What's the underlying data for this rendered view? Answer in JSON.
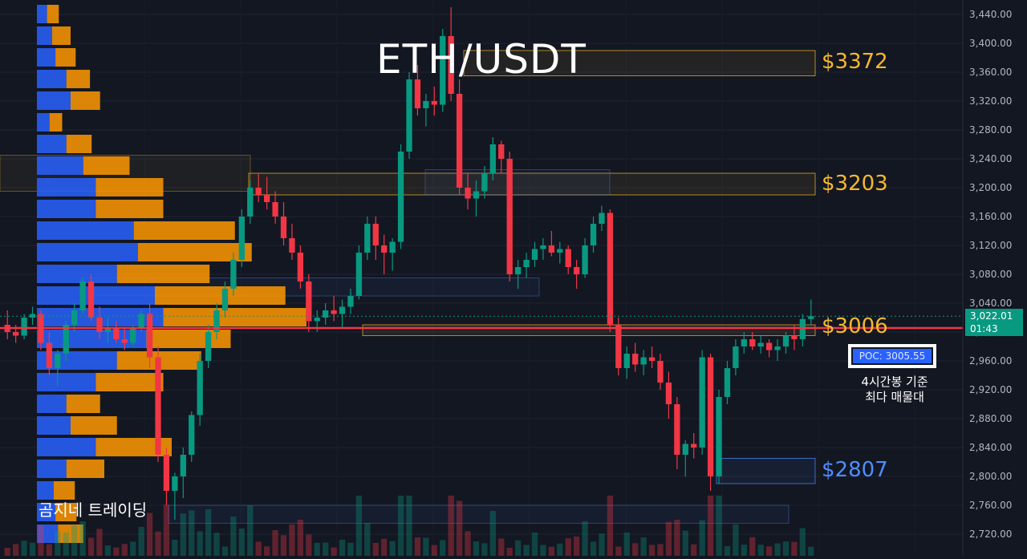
{
  "title": "ETH/USDT",
  "price_axis": {
    "ticks": [
      "2,720.00",
      "2,760.00",
      "2,800.00",
      "2,840.00",
      "2,880.00",
      "2,920.00",
      "2,960.00",
      "3,000.00",
      "3,040.00",
      "3,080.00",
      "3,120.00",
      "3,160.00",
      "3,200.00",
      "3,240.00",
      "3,280.00",
      "3,320.00",
      "3,360.00",
      "3,400.00",
      "3,440.00"
    ]
  },
  "current_price": {
    "value": "3,022.01",
    "countdown": "01:43",
    "color": "#089981"
  },
  "levels": [
    {
      "label": "$3372",
      "price": 3372,
      "color": "#f5b82e",
      "zone": [
        3355,
        3390
      ]
    },
    {
      "label": "$3203",
      "price": 3203,
      "color": "#f5b82e",
      "zone": [
        3190,
        3220
      ]
    },
    {
      "label": "$3006",
      "price": 3006,
      "color": "#f5b82e",
      "zone": [
        2995,
        3010
      ]
    },
    {
      "label": "$2807",
      "price": 2807,
      "color": "#4f8dff",
      "zone": [
        2790,
        2825
      ]
    }
  ],
  "poc": {
    "label": "POC: 3005.55",
    "price": 3005.55,
    "color": "#2962ff",
    "line_color": "#f23645"
  },
  "poc_note": [
    "4시간봉 기준",
    "최다 매물대"
  ],
  "brand": "곰지네 트레이딩",
  "colors": {
    "up": "#089981",
    "down": "#f23645",
    "volume_buy": "#2962ff",
    "volume_sell": "#ff9800",
    "background": "#131722"
  },
  "chart_data": {
    "type": "candlestick",
    "title": "ETH/USDT",
    "ylim": [
      2690,
      3460
    ],
    "grid": true,
    "series": [
      {
        "kind": "candles",
        "ohlc": [
          [
            3010,
            3030,
            2990,
            3000
          ],
          [
            3000,
            3010,
            2985,
            2995
          ],
          [
            2995,
            3025,
            2990,
            3020
          ],
          [
            3020,
            3035,
            3010,
            3025
          ],
          [
            3025,
            3030,
            2975,
            2985
          ],
          [
            2985,
            3000,
            2940,
            2950
          ],
          [
            2950,
            2975,
            2925,
            2970
          ],
          [
            2970,
            3015,
            2960,
            3010
          ],
          [
            3010,
            3040,
            3000,
            3030
          ],
          [
            3030,
            3075,
            3025,
            3070
          ],
          [
            3070,
            3080,
            3015,
            3020
          ],
          [
            3020,
            3035,
            2990,
            3000
          ],
          [
            3000,
            3020,
            2985,
            3005
          ],
          [
            3005,
            3015,
            2985,
            2990
          ],
          [
            2990,
            3005,
            2975,
            2985
          ],
          [
            2985,
            3010,
            2980,
            3005
          ],
          [
            3005,
            3030,
            3000,
            3025
          ],
          [
            3025,
            3040,
            2950,
            2965
          ],
          [
            2965,
            2980,
            2820,
            2830
          ],
          [
            2830,
            2840,
            2760,
            2780
          ],
          [
            2780,
            2805,
            2740,
            2800
          ],
          [
            2800,
            2840,
            2770,
            2830
          ],
          [
            2830,
            2890,
            2820,
            2885
          ],
          [
            2885,
            2970,
            2870,
            2960
          ],
          [
            2960,
            3010,
            2950,
            3000
          ],
          [
            3000,
            3040,
            2990,
            3030
          ],
          [
            3030,
            3070,
            3020,
            3060
          ],
          [
            3060,
            3110,
            3050,
            3100
          ],
          [
            3100,
            3170,
            3090,
            3160
          ],
          [
            3160,
            3210,
            3150,
            3200
          ],
          [
            3200,
            3220,
            3180,
            3190
          ],
          [
            3190,
            3215,
            3170,
            3180
          ],
          [
            3180,
            3195,
            3150,
            3160
          ],
          [
            3160,
            3180,
            3120,
            3130
          ],
          [
            3130,
            3150,
            3100,
            3110
          ],
          [
            3110,
            3120,
            3060,
            3070
          ],
          [
            3070,
            3080,
            3000,
            3015
          ],
          [
            3015,
            3030,
            3000,
            3020
          ],
          [
            3020,
            3040,
            3010,
            3030
          ],
          [
            3030,
            3050,
            3015,
            3025
          ],
          [
            3025,
            3045,
            3005,
            3035
          ],
          [
            3035,
            3060,
            3025,
            3050
          ],
          [
            3050,
            3120,
            3045,
            3110
          ],
          [
            3110,
            3160,
            3100,
            3150
          ],
          [
            3150,
            3160,
            3100,
            3120
          ],
          [
            3120,
            3135,
            3080,
            3110
          ],
          [
            3110,
            3130,
            3085,
            3125
          ],
          [
            3125,
            3260,
            3115,
            3250
          ],
          [
            3250,
            3360,
            3240,
            3350
          ],
          [
            3350,
            3370,
            3300,
            3310
          ],
          [
            3310,
            3330,
            3285,
            3320
          ],
          [
            3320,
            3340,
            3300,
            3315
          ],
          [
            3315,
            3420,
            3305,
            3410
          ],
          [
            3410,
            3450,
            3320,
            3330
          ],
          [
            3330,
            3350,
            3190,
            3200
          ],
          [
            3200,
            3220,
            3170,
            3185
          ],
          [
            3185,
            3210,
            3160,
            3195
          ],
          [
            3195,
            3230,
            3185,
            3220
          ],
          [
            3220,
            3270,
            3210,
            3260
          ],
          [
            3260,
            3265,
            3220,
            3240
          ],
          [
            3240,
            3250,
            3070,
            3080
          ],
          [
            3080,
            3100,
            3060,
            3090
          ],
          [
            3090,
            3110,
            3075,
            3100
          ],
          [
            3100,
            3125,
            3090,
            3115
          ],
          [
            3115,
            3130,
            3100,
            3120
          ],
          [
            3120,
            3140,
            3105,
            3110
          ],
          [
            3110,
            3125,
            3095,
            3115
          ],
          [
            3115,
            3120,
            3080,
            3090
          ],
          [
            3090,
            3100,
            3060,
            3080
          ],
          [
            3080,
            3130,
            3075,
            3120
          ],
          [
            3120,
            3160,
            3110,
            3150
          ],
          [
            3150,
            3175,
            3140,
            3165
          ],
          [
            3165,
            3170,
            3000,
            3010
          ],
          [
            3010,
            3020,
            2940,
            2950
          ],
          [
            2950,
            2980,
            2935,
            2970
          ],
          [
            2970,
            2985,
            2945,
            2955
          ],
          [
            2955,
            2975,
            2940,
            2965
          ],
          [
            2965,
            2980,
            2950,
            2960
          ],
          [
            2960,
            2970,
            2920,
            2930
          ],
          [
            2930,
            2945,
            2880,
            2900
          ],
          [
            2900,
            2910,
            2810,
            2830
          ],
          [
            2830,
            2850,
            2800,
            2845
          ],
          [
            2845,
            2860,
            2825,
            2840
          ],
          [
            2840,
            2975,
            2830,
            2965
          ],
          [
            2965,
            2970,
            2780,
            2800
          ],
          [
            2800,
            2920,
            2790,
            2910
          ],
          [
            2910,
            2960,
            2900,
            2950
          ],
          [
            2950,
            2990,
            2940,
            2980
          ],
          [
            2980,
            3000,
            2970,
            2990
          ],
          [
            2990,
            3000,
            2975,
            2980
          ],
          [
            2980,
            2995,
            2970,
            2985
          ],
          [
            2985,
            2990,
            2965,
            2975
          ],
          [
            2975,
            2990,
            2960,
            2980
          ],
          [
            2980,
            3000,
            2970,
            2995
          ],
          [
            2995,
            3010,
            2975,
            2990
          ],
          [
            2990,
            3025,
            2980,
            3018
          ],
          [
            3018,
            3045,
            3010,
            3022
          ]
        ]
      },
      {
        "kind": "volume_profile",
        "bins": [
          {
            "price": 3440,
            "buy": 12,
            "sell": 14
          },
          {
            "price": 3410,
            "buy": 18,
            "sell": 22
          },
          {
            "price": 3380,
            "buy": 22,
            "sell": 24
          },
          {
            "price": 3350,
            "buy": 35,
            "sell": 28
          },
          {
            "price": 3320,
            "buy": 40,
            "sell": 35
          },
          {
            "price": 3290,
            "buy": 15,
            "sell": 15
          },
          {
            "price": 3260,
            "buy": 35,
            "sell": 30
          },
          {
            "price": 3230,
            "buy": 55,
            "sell": 55
          },
          {
            "price": 3200,
            "buy": 70,
            "sell": 80
          },
          {
            "price": 3170,
            "buy": 70,
            "sell": 80
          },
          {
            "price": 3140,
            "buy": 115,
            "sell": 120
          },
          {
            "price": 3110,
            "buy": 120,
            "sell": 135
          },
          {
            "price": 3080,
            "buy": 95,
            "sell": 110
          },
          {
            "price": 3050,
            "buy": 140,
            "sell": 155
          },
          {
            "price": 3020,
            "buy": 150,
            "sell": 170
          },
          {
            "price": 2990,
            "buy": 130,
            "sell": 100
          },
          {
            "price": 2960,
            "buy": 95,
            "sell": 100
          },
          {
            "price": 2930,
            "buy": 70,
            "sell": 80
          },
          {
            "price": 2900,
            "buy": 35,
            "sell": 40
          },
          {
            "price": 2870,
            "buy": 40,
            "sell": 55
          },
          {
            "price": 2840,
            "buy": 70,
            "sell": 90
          },
          {
            "price": 2810,
            "buy": 35,
            "sell": 45
          },
          {
            "price": 2780,
            "buy": 20,
            "sell": 25
          },
          {
            "price": 2750,
            "buy": 22,
            "sell": 25
          },
          {
            "price": 2720,
            "buy": 25,
            "sell": 30
          }
        ]
      }
    ]
  }
}
